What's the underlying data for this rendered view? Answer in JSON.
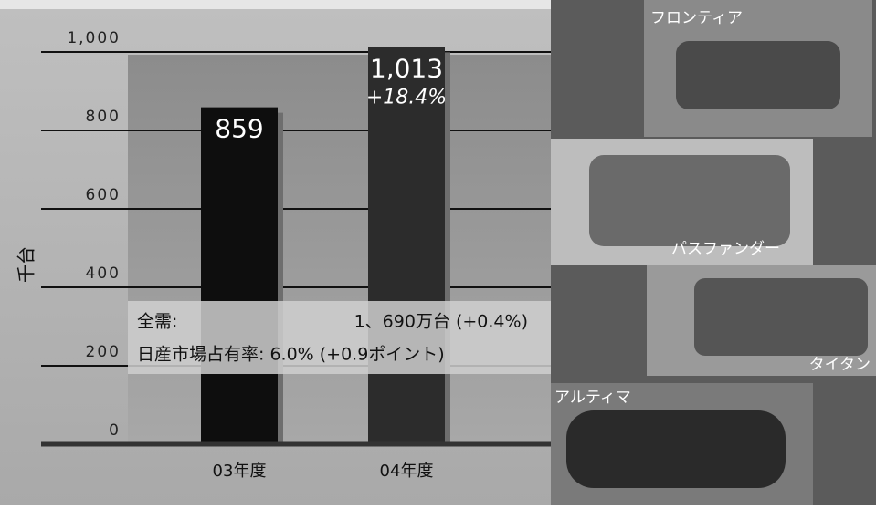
{
  "chart_data": {
    "type": "bar",
    "y_label": "千台",
    "categories": [
      "03年度",
      "04年度"
    ],
    "values": [
      859,
      1013
    ],
    "value_labels": [
      "859",
      "1,013"
    ],
    "colors": [
      "#0e0e0e",
      "#2c2c2c"
    ],
    "annotations": [
      "+18.4%"
    ],
    "ylim": [
      0,
      1000
    ],
    "yticks": [
      0,
      200,
      400,
      600,
      800,
      {
        "value": 1000,
        "label": "1,000"
      }
    ],
    "grid": true
  },
  "info_box": {
    "rows": [
      [
        "全需:",
        "1、690万台 (+0.4%)"
      ],
      [
        "日産市場占有率: 6.0% (+0.9ポイント)"
      ]
    ]
  },
  "photo_captions": [
    "フロンティア",
    "パスファンダー",
    "タイタン",
    "アルティマ"
  ]
}
